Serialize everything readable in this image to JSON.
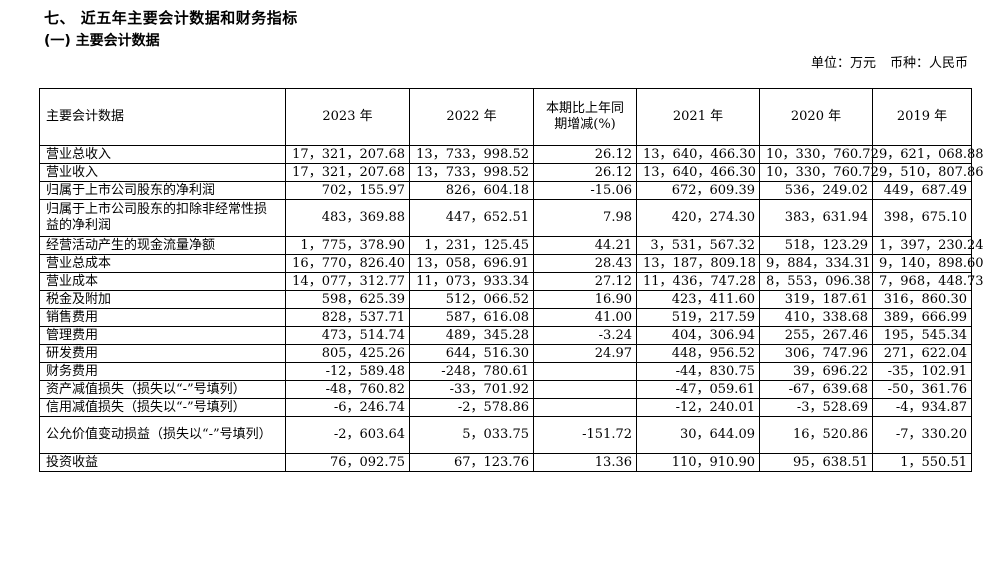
{
  "section_title": "七、 近五年主要会计数据和财务指标",
  "sub_title": "(一) 主要会计数据",
  "unit_label": "单位：万元",
  "currency_label": "币种：人民币",
  "columns": [
    "主要会计数据",
    "2023 年",
    "2022 年",
    "本期比上年同期增减(%)",
    "2021 年",
    "2020 年",
    "2019 年"
  ],
  "rows": [
    [
      "营业总收入",
      "17，321，207.68",
      "13，733，998.52",
      "26.12",
      "13，640，466.30",
      "10，330，760.72",
      "9，621，068.88"
    ],
    [
      "营业收入",
      "17，321，207.68",
      "13，733，998.52",
      "26.12",
      "13，640，466.30",
      "10，330，760.72",
      "9，510，807.86"
    ],
    [
      "归属于上市公司股东的净利润",
      "702，155.97",
      "826，604.18",
      "-15.06",
      "672，609.39",
      "536，249.02",
      "449，687.49"
    ],
    [
      "归属于上市公司股东的扣除非经常性损益的净利润",
      "483，369.88",
      "447，652.51",
      "7.98",
      "420，274.30",
      "383，631.94",
      "398，675.10"
    ],
    [
      "经营活动产生的现金流量净额",
      "1，775，378.90",
      "1，231，125.45",
      "44.21",
      "3，531，567.32",
      "518，123.29",
      "1，397，230.24"
    ],
    [
      "营业总成本",
      "16，770，826.40",
      "13，058，696.91",
      "28.43",
      "13，187，809.18",
      "9，884，334.31",
      "9，140，898.60"
    ],
    [
      "营业成本",
      "14，077，312.77",
      "11，073，933.34",
      "27.12",
      "11，436，747.28",
      "8，553，096.38",
      "7，968，448.73"
    ],
    [
      "税金及附加",
      "598，625.39",
      "512，066.52",
      "16.90",
      "423，411.60",
      "319，187.61",
      "316，860.30"
    ],
    [
      "销售费用",
      "828，537.71",
      "587，616.08",
      "41.00",
      "519，217.59",
      "410，338.68",
      "389，666.99"
    ],
    [
      "管理费用",
      "473，514.74",
      "489，345.28",
      "-3.24",
      "404，306.94",
      "255，267.46",
      "195，545.34"
    ],
    [
      "研发费用",
      "805，425.26",
      "644，516.30",
      "24.97",
      "448，956.52",
      "306，747.96",
      "271，622.04"
    ],
    [
      "财务费用",
      "-12，589.48",
      "-248，780.61",
      "",
      "-44，830.75",
      "39，696.22",
      "-35，102.91"
    ],
    [
      "资产减值损失（损失以“-”号填列）",
      "-48，760.82",
      "-33，701.92",
      "",
      "-47，059.61",
      "-67，639.68",
      "-50，361.76"
    ],
    [
      "信用减值损失（损失以“-”号填列）",
      "-6，246.74",
      "-2，578.86",
      "",
      "-12，240.01",
      "-3，528.69",
      "-4，934.87"
    ],
    [
      "公允价值变动损益（损失以“-”号填列）",
      "-2，603.64",
      "5，033.75",
      "-151.72",
      "30，644.09",
      "16，520.86",
      "-7，330.20"
    ],
    [
      "投资收益",
      "76，092.75",
      "67，123.76",
      "13.36",
      "110，910.90",
      "95，638.51",
      "1，550.51"
    ]
  ]
}
